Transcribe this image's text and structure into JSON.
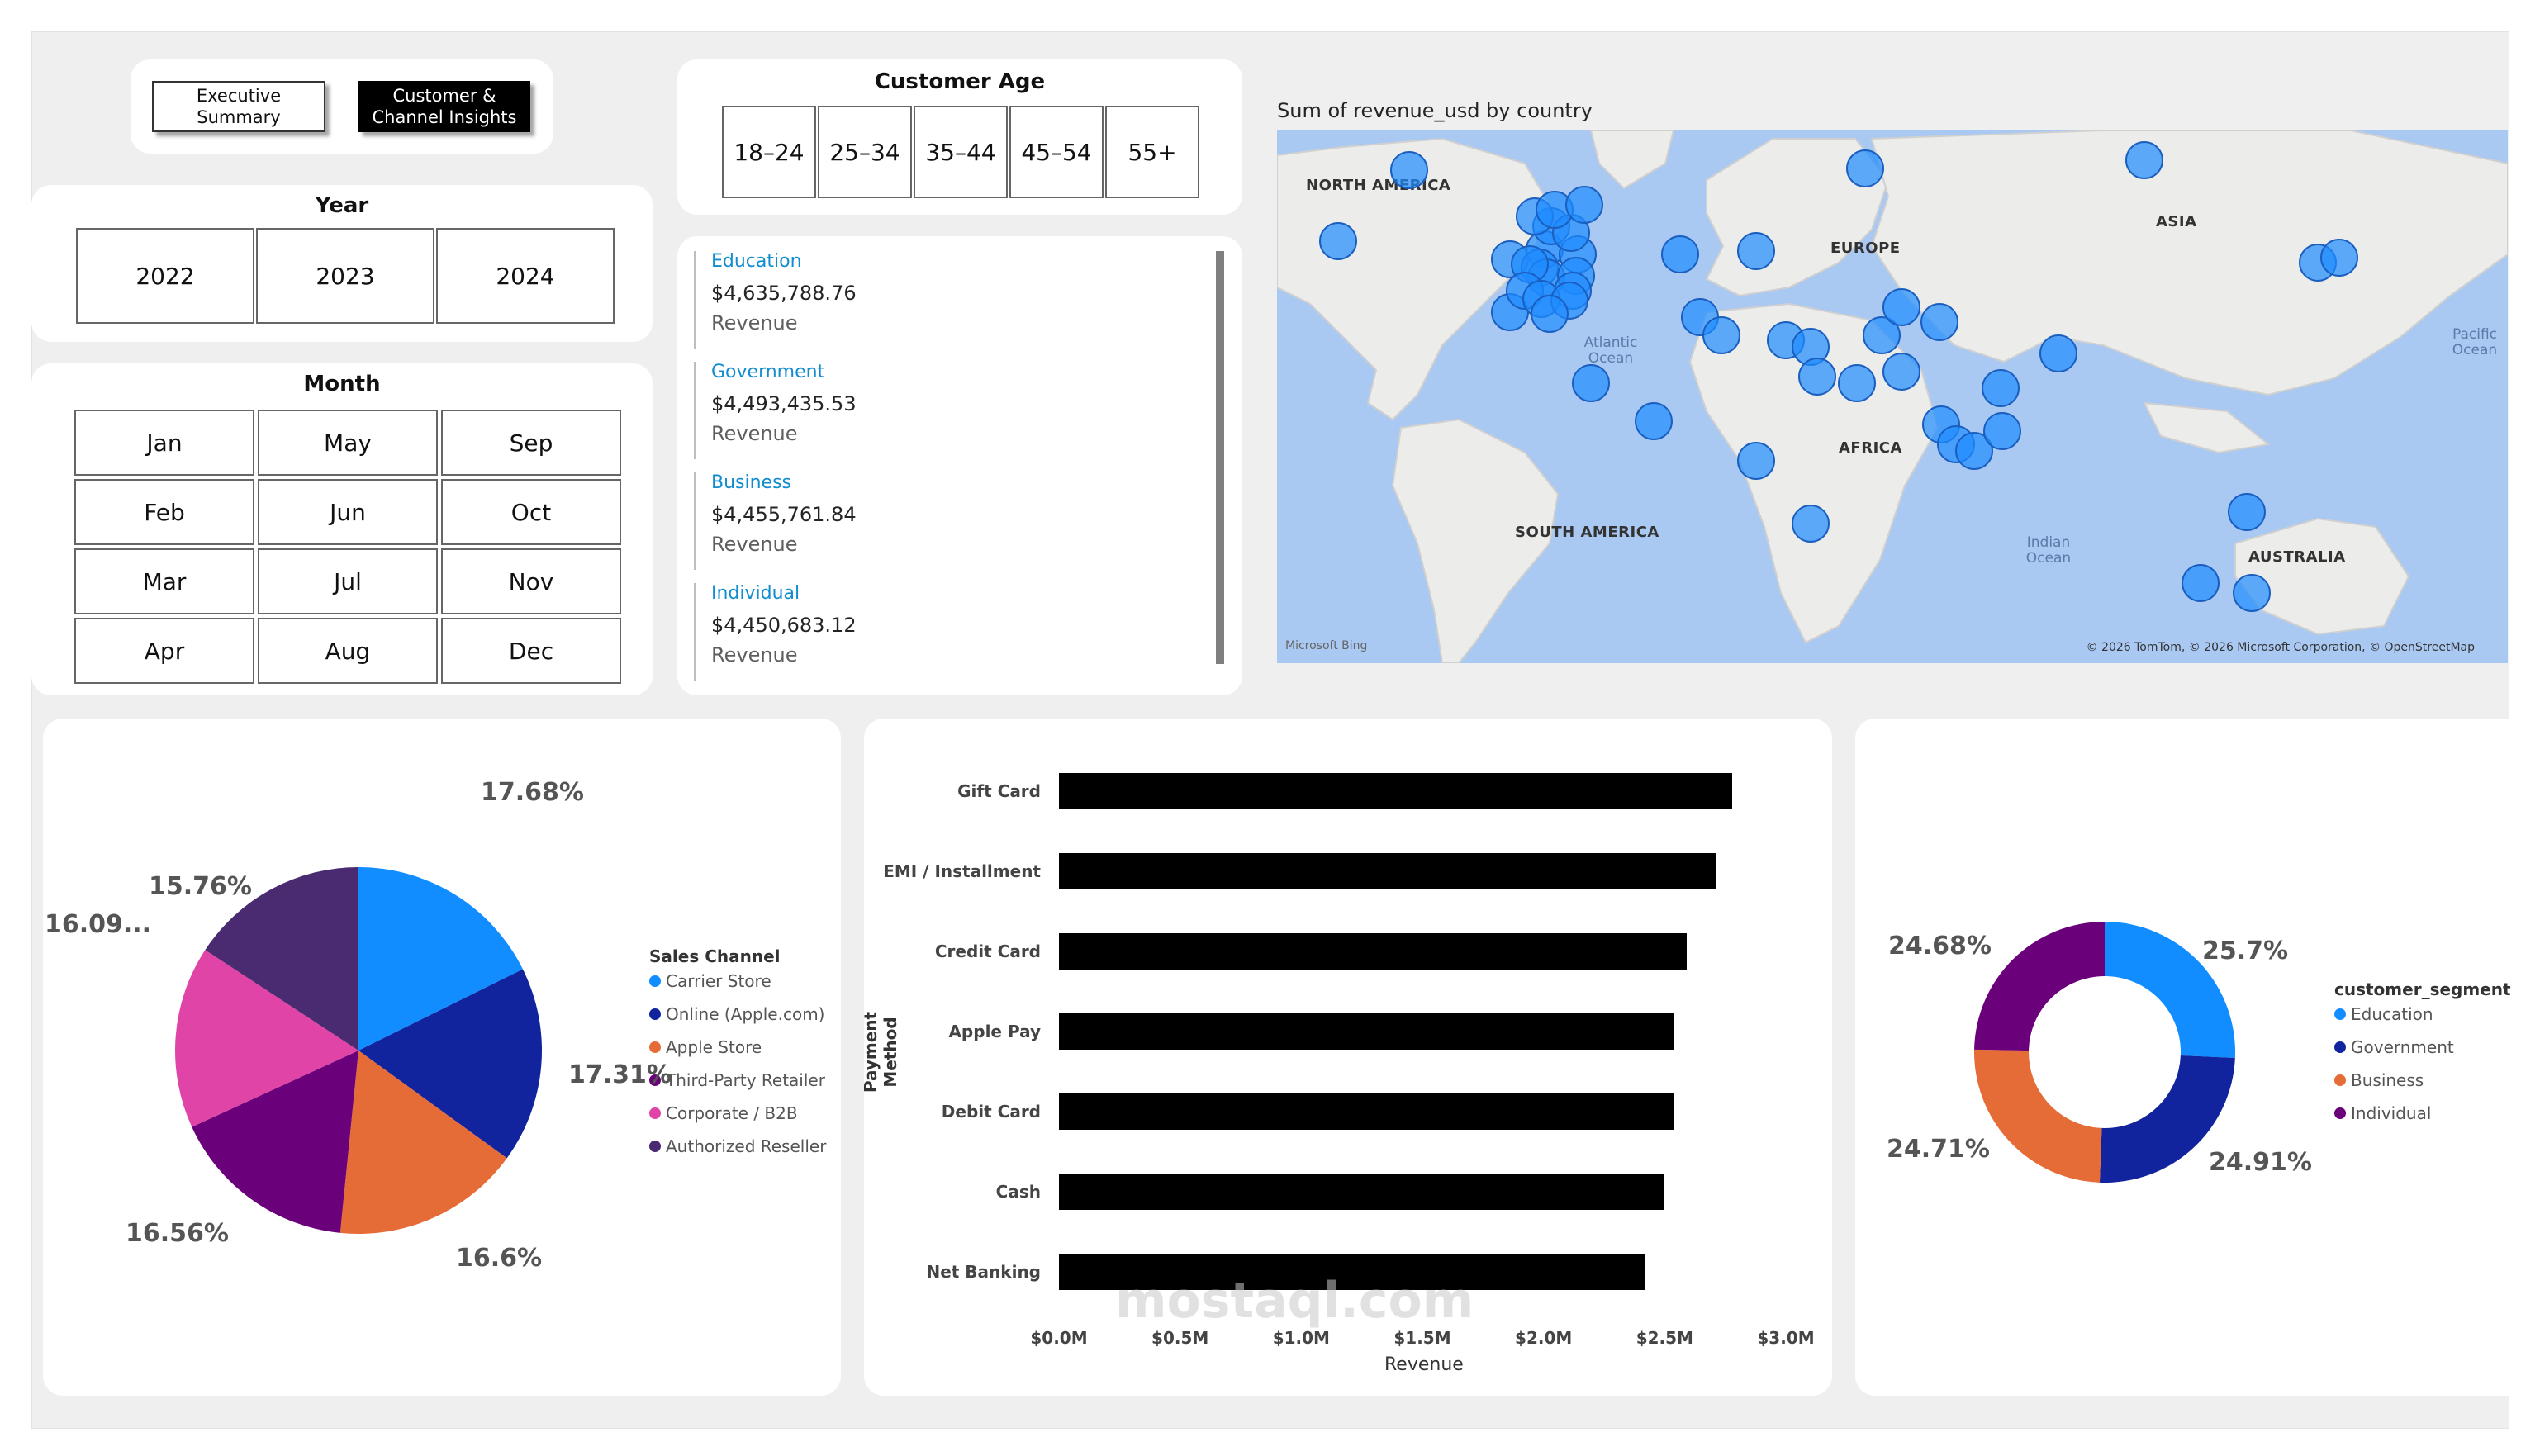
{
  "nav": {
    "executive_summary": "Executive Summary",
    "customer_channel": "Customer & Channel Insights"
  },
  "age": {
    "title": "Customer Age",
    "options": [
      "18–24",
      "25–34",
      "35–44",
      "45–54",
      "55+"
    ]
  },
  "year": {
    "title": "Year",
    "options": [
      "2022",
      "2023",
      "2024"
    ]
  },
  "month": {
    "title": "Month",
    "col1": [
      "Jan",
      "Feb",
      "Mar",
      "Apr"
    ],
    "col2": [
      "May",
      "Jun",
      "Jul",
      "Aug"
    ],
    "col3": [
      "Sep",
      "Oct",
      "Nov",
      "Dec"
    ]
  },
  "kpis": [
    {
      "name": "Education",
      "value": "$4,635,788.76",
      "label": "Revenue"
    },
    {
      "name": "Government",
      "value": "$4,493,435.53",
      "label": "Revenue"
    },
    {
      "name": "Business",
      "value": "$4,455,761.84",
      "label": "Revenue"
    },
    {
      "name": "Individual",
      "value": "$4,450,683.12",
      "label": "Revenue"
    }
  ],
  "map": {
    "title": "Sum of revenue_usd by country",
    "continents": {
      "na": "NORTH AMERICA",
      "eu": "EUROPE",
      "asia": "ASIA",
      "africa": "AFRICA",
      "sa": "SOUTH AMERICA",
      "au": "AUSTRALIA"
    },
    "oceans": {
      "atlantic": "Atlantic Ocean",
      "indian": "Indian Ocean",
      "pacific": "Pacific Ocean"
    },
    "attribution": "© 2026 TomTom, © 2026 Microsoft Corporation, © OpenStreetMap",
    "bing": "Microsoft Bing"
  },
  "pie": {
    "legend_title": "Sales Channel",
    "slices": [
      {
        "name": "Carrier Store",
        "label": "17.68%",
        "value": 17.68,
        "color": "#118dff"
      },
      {
        "name": "Online (Apple.com)",
        "label": "17.31%",
        "value": 17.31,
        "color": "#12239e"
      },
      {
        "name": "Apple Store",
        "label": "16.6%",
        "value": 16.6,
        "color": "#e66c37"
      },
      {
        "name": "Third-Party Retailer",
        "label": "16.56%",
        "value": 16.56,
        "color": "#6b007b"
      },
      {
        "name": "Corporate / B2B",
        "label": "16.09...",
        "value": 16.09,
        "color": "#e044a7"
      },
      {
        "name": "Authorized Reseller",
        "label": "15.76%",
        "value": 15.76,
        "color": "#4a2a70"
      }
    ]
  },
  "chart_data": [
    {
      "type": "bar",
      "orientation": "horizontal",
      "ylabel": "Payment Method",
      "xlabel": "Revenue",
      "categories": [
        "Gift Card",
        "EMI / Installment",
        "Credit Card",
        "Apple Pay",
        "Debit Card",
        "Cash",
        "Net Banking"
      ],
      "values": [
        2.78,
        2.71,
        2.59,
        2.54,
        2.54,
        2.5,
        2.42
      ],
      "xticks": [
        "$0.0M",
        "$0.5M",
        "$1.0M",
        "$1.5M",
        "$2.0M",
        "$2.5M",
        "$3.0M"
      ],
      "xlim": [
        0,
        3.0
      ]
    }
  ],
  "donut": {
    "legend_title": "customer_segment",
    "slices": [
      {
        "name": "Education",
        "label": "25.7%",
        "value": 25.7,
        "color": "#118dff"
      },
      {
        "name": "Government",
        "label": "24.91%",
        "value": 24.91,
        "color": "#12239e"
      },
      {
        "name": "Business",
        "label": "24.71%",
        "value": 24.71,
        "color": "#e66c37"
      },
      {
        "name": "Individual",
        "label": "24.68%",
        "value": 24.68,
        "color": "#6b007b"
      }
    ]
  },
  "watermark": "mostaql.com"
}
